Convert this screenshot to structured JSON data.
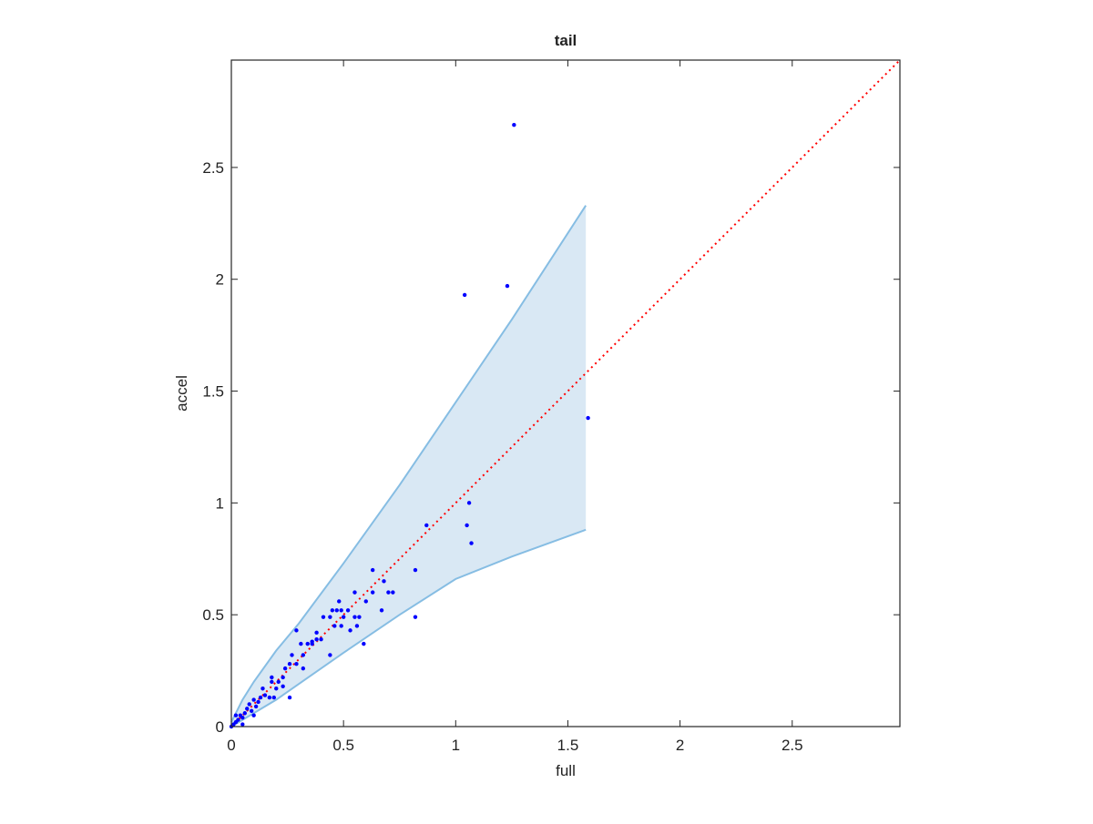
{
  "chart_data": {
    "type": "scatter",
    "title": "tail",
    "x_label": "full",
    "y_label": "accel",
    "xlim": [
      0,
      2.98
    ],
    "ylim": [
      0,
      2.98
    ],
    "xticks": [
      0,
      0.5,
      1,
      1.5,
      2,
      2.5
    ],
    "yticks": [
      0,
      0.5,
      1,
      1.5,
      2,
      2.5
    ],
    "points": {
      "color": "#0000ff",
      "x": [
        1.26,
        1.04,
        1.23,
        1.59,
        1.06,
        1.05,
        1.07,
        0.87,
        0.82,
        0.82,
        0.63,
        0.63,
        0.68,
        0.7,
        0.72,
        0.67,
        0.6,
        0.59,
        0.57,
        0.56,
        0.55,
        0.52,
        0.5,
        0.48,
        0.47,
        0.49,
        0.46,
        0.45,
        0.44,
        0.44,
        0.41,
        0.4,
        0.38,
        0.38,
        0.36,
        0.32,
        0.31,
        0.29,
        0.29,
        0.32,
        0.27,
        0.26,
        0.26,
        0.24,
        0.23,
        0.23,
        0.21,
        0.2,
        0.18,
        0.18,
        0.17,
        0.15,
        0.14,
        0.13,
        0.12,
        0.11,
        0.1,
        0.1,
        0.09,
        0.08,
        0.07,
        0.06,
        0.05,
        0.04,
        0.03,
        0.02,
        0.01,
        0.0,
        0.02,
        0.05,
        0.19,
        0.34,
        0.53,
        0.49,
        0.55,
        0.36
      ],
      "values": [
        2.69,
        1.93,
        1.97,
        1.38,
        1.0,
        0.9,
        0.82,
        0.9,
        0.7,
        0.49,
        0.7,
        0.6,
        0.65,
        0.6,
        0.6,
        0.52,
        0.56,
        0.37,
        0.49,
        0.45,
        0.6,
        0.52,
        0.49,
        0.56,
        0.52,
        0.52,
        0.45,
        0.52,
        0.49,
        0.32,
        0.49,
        0.39,
        0.39,
        0.42,
        0.37,
        0.32,
        0.37,
        0.43,
        0.28,
        0.26,
        0.32,
        0.28,
        0.13,
        0.26,
        0.22,
        0.18,
        0.2,
        0.17,
        0.22,
        0.2,
        0.13,
        0.14,
        0.17,
        0.13,
        0.11,
        0.09,
        0.12,
        0.05,
        0.07,
        0.1,
        0.08,
        0.06,
        0.04,
        0.05,
        0.03,
        0.02,
        0.01,
        0.0,
        0.05,
        0.01,
        0.13,
        0.37,
        0.43,
        0.45,
        0.49,
        0.38
      ]
    },
    "band": {
      "color": "#86bde3",
      "fill": "#d9e8f4",
      "x": [
        0,
        0.05,
        0.1,
        0.2,
        0.3,
        0.5,
        0.75,
        1.0,
        1.25,
        1.58
      ],
      "upper": [
        0.02,
        0.12,
        0.2,
        0.34,
        0.46,
        0.73,
        1.08,
        1.45,
        1.82,
        2.33
      ],
      "lower": [
        0,
        0.03,
        0.06,
        0.12,
        0.19,
        0.33,
        0.5,
        0.66,
        0.76,
        0.88
      ]
    },
    "reference_line": {
      "color": "#ff0000",
      "x": [
        0,
        2.98
      ],
      "values": [
        0,
        2.98
      ]
    }
  }
}
